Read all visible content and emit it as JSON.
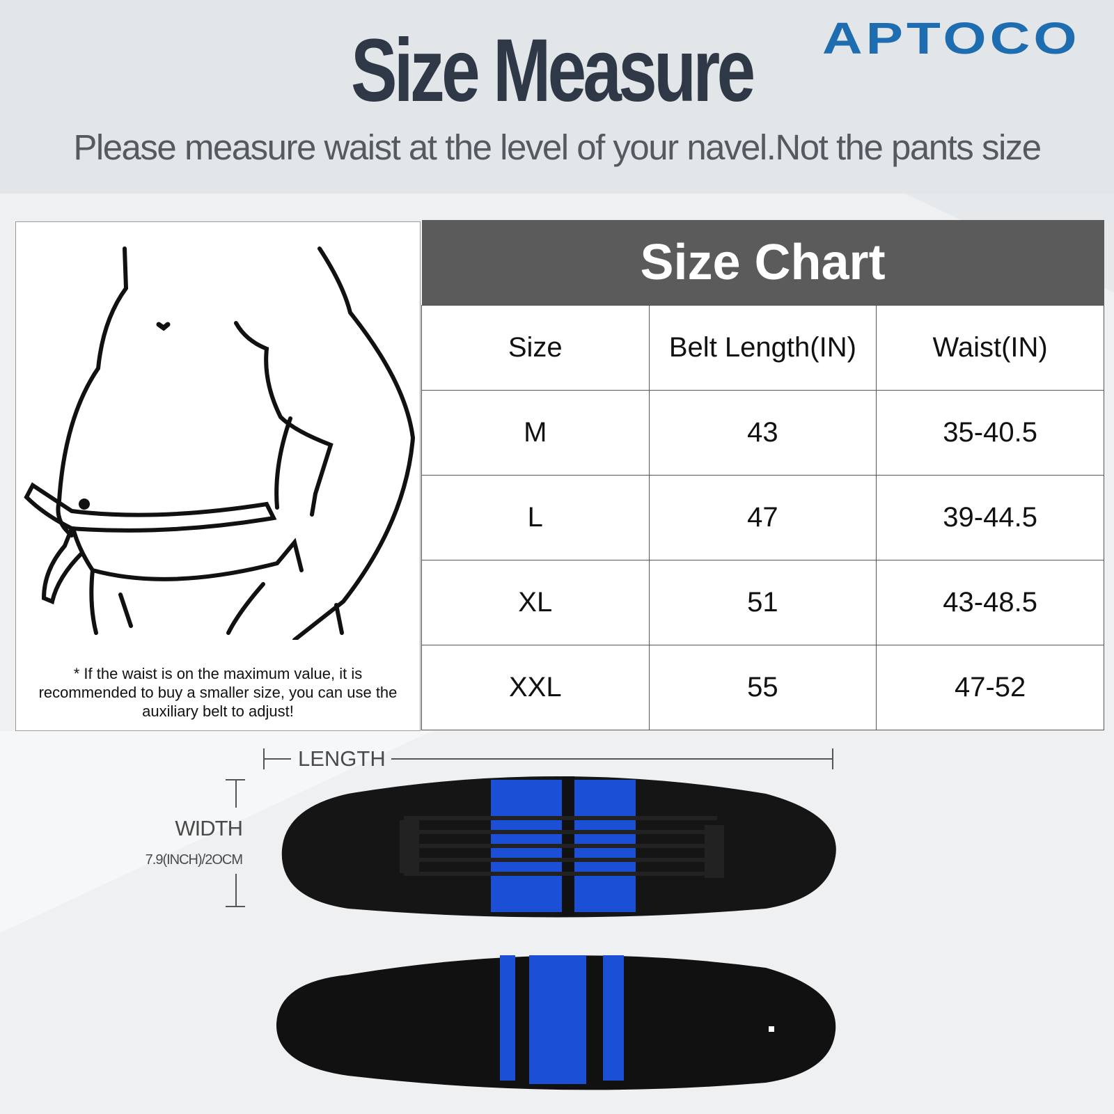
{
  "header": {
    "title": "Size Measure",
    "brand_logo": "APTOCO",
    "subtitle": "Please measure waist at the level of your navel.Not the pants size"
  },
  "illustration": {
    "note": "* If the waist is on the maximum value, it is recommended to buy a smaller size, you can use the auxiliary belt to adjust!"
  },
  "size_chart": {
    "title": "Size Chart",
    "columns": [
      "Size",
      "Belt Length(IN)",
      "Waist(IN)"
    ],
    "rows": [
      [
        "M",
        "43",
        "35-40.5"
      ],
      [
        "L",
        "47",
        "39-44.5"
      ],
      [
        "XL",
        "51",
        "43-48.5"
      ],
      [
        "XXL",
        "55",
        "47-52"
      ]
    ]
  },
  "dimensions": {
    "length_label": "LENGTH",
    "width_label": "WIDTH",
    "width_value": "7.9(INCH)/2OCM"
  },
  "colors": {
    "brand": "#1e6db0",
    "title": "#2e3846",
    "table_header": "#5b5b5b",
    "belt_blue": "#1a4fd6"
  }
}
